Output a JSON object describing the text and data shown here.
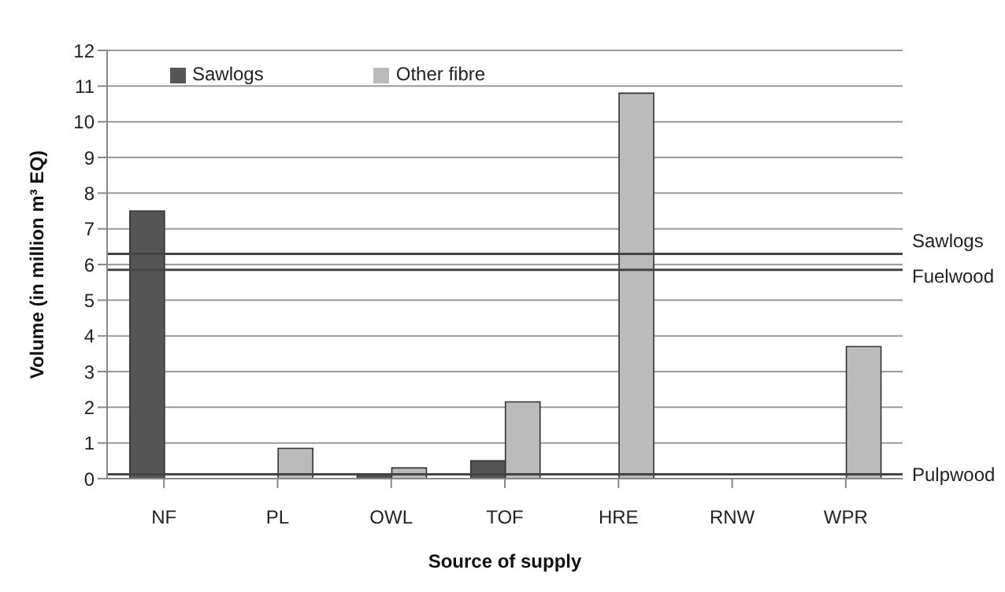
{
  "chart_data": {
    "type": "bar",
    "xlabel": "Source of supply",
    "ylabel": "Volume (in million m³ EQ)",
    "categories": [
      "NF",
      "PL",
      "OWL",
      "TOF",
      "HRE",
      "RNW",
      "WPR"
    ],
    "series": [
      {
        "name": "Sawlogs",
        "color": "#555555",
        "values": [
          7.5,
          null,
          0.1,
          0.5,
          null,
          null,
          null
        ]
      },
      {
        "name": "Other fibre",
        "color": "#bbbbbb",
        "values": [
          null,
          0.85,
          0.3,
          2.15,
          10.8,
          null,
          3.7
        ]
      }
    ],
    "ylim": [
      0,
      12
    ],
    "yticks": [
      0,
      1,
      2,
      3,
      4,
      5,
      6,
      7,
      8,
      9,
      10,
      11,
      12
    ],
    "grid": "y",
    "legend": "top left",
    "ref_lines": [
      {
        "axis": "y",
        "value": 6.3,
        "label": "Sawlogs",
        "color": "#444444"
      },
      {
        "axis": "y",
        "value": 5.85,
        "label": "Fuelwood",
        "color": "#444444"
      },
      {
        "axis": "y",
        "value": 0.12,
        "label": "Pulpwood",
        "color": "#444444"
      }
    ]
  }
}
